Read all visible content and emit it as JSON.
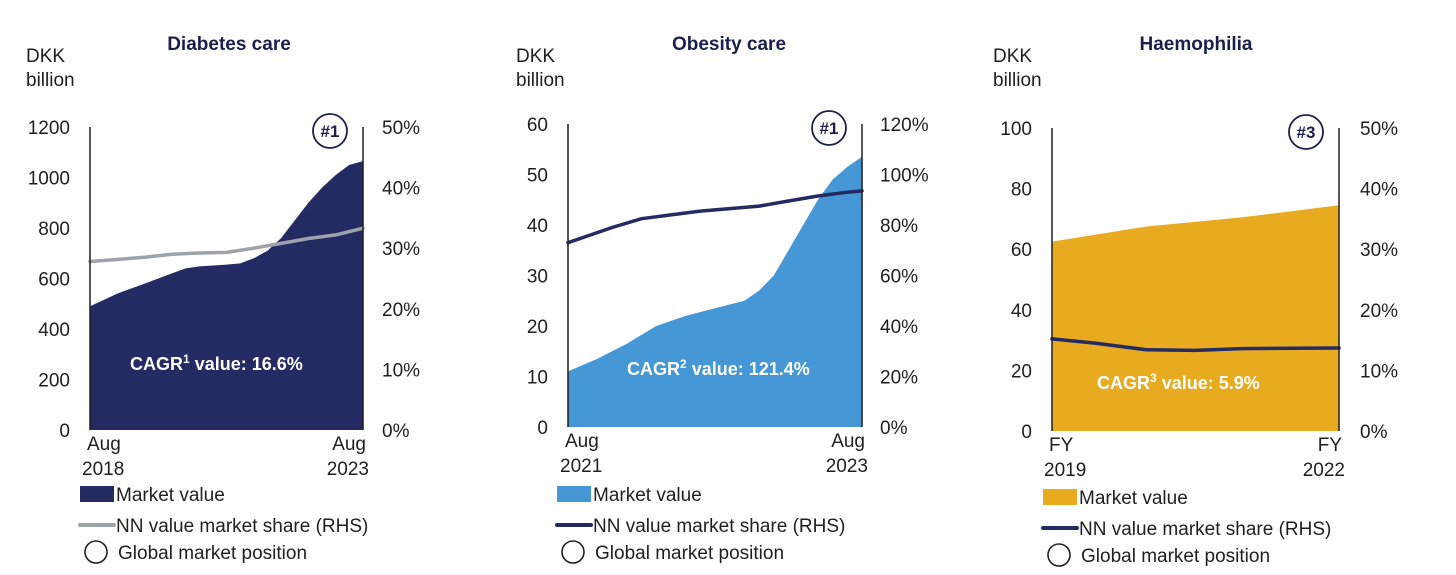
{
  "colors": {
    "navy": "#242a62",
    "light_blue": "#4597d5",
    "gold": "#e8ab20",
    "grey": "#9ea3ab",
    "text": "#1f1f1f"
  },
  "chart_data": [
    {
      "type": "area",
      "title": "Diabetes care",
      "ylabel": [
        "DKK",
        "billion"
      ],
      "ylim": [
        0,
        1200
      ],
      "yticks": [
        "0",
        "200",
        "400",
        "600",
        "800",
        "1000",
        "1200"
      ],
      "y2lim": [
        0,
        50
      ],
      "y2ticks": [
        "0%",
        "10%",
        "20%",
        "30%",
        "40%",
        "50%"
      ],
      "xticks": [
        [
          "Aug",
          "2018"
        ],
        [
          "Aug",
          "2023"
        ]
      ],
      "badge": "#1",
      "cagr": {
        "base": "CAGR",
        "sup": "1",
        "rest": " value: 16.6%"
      },
      "market_color": "navy",
      "share_color": "grey",
      "legend": [
        "Market value",
        "NN value market share (RHS)",
        "Global market position"
      ],
      "market_value": [
        [
          0,
          490
        ],
        [
          0.03,
          505
        ],
        [
          0.1,
          540
        ],
        [
          0.2,
          580
        ],
        [
          0.3,
          620
        ],
        [
          0.35,
          640
        ],
        [
          0.4,
          648
        ],
        [
          0.5,
          655
        ],
        [
          0.55,
          660
        ],
        [
          0.6,
          680
        ],
        [
          0.65,
          710
        ],
        [
          0.7,
          760
        ],
        [
          0.75,
          830
        ],
        [
          0.8,
          900
        ],
        [
          0.85,
          960
        ],
        [
          0.9,
          1010
        ],
        [
          0.95,
          1050
        ],
        [
          1,
          1065
        ]
      ],
      "nn_share": [
        [
          0,
          27.8
        ],
        [
          0.2,
          28.5
        ],
        [
          0.3,
          29.0
        ],
        [
          0.4,
          29.2
        ],
        [
          0.5,
          29.3
        ],
        [
          0.6,
          30.0
        ],
        [
          0.7,
          30.8
        ],
        [
          0.8,
          31.6
        ],
        [
          0.9,
          32.2
        ],
        [
          1,
          33.3
        ]
      ]
    },
    {
      "type": "area",
      "title": "Obesity care",
      "ylabel": [
        "DKK",
        "billion"
      ],
      "ylim": [
        0,
        60
      ],
      "yticks": [
        "0",
        "10",
        "20",
        "30",
        "40",
        "50",
        "60"
      ],
      "y2lim": [
        0,
        120
      ],
      "y2ticks": [
        "0%",
        "20%",
        "40%",
        "60%",
        "80%",
        "100%",
        "120%"
      ],
      "xticks": [
        [
          "Aug",
          "2021"
        ],
        [
          "Aug",
          "2023"
        ]
      ],
      "badge": "#1",
      "cagr": {
        "base": "CAGR",
        "sup": "2",
        "rest": " value: 121.4%"
      },
      "market_color": "light_blue",
      "share_color": "navy",
      "legend": [
        "Market value",
        "NN value market share (RHS)",
        "Global market position"
      ],
      "market_value": [
        [
          0,
          11
        ],
        [
          0.1,
          13.5
        ],
        [
          0.2,
          16.5
        ],
        [
          0.3,
          20
        ],
        [
          0.4,
          22
        ],
        [
          0.5,
          23.5
        ],
        [
          0.6,
          25
        ],
        [
          0.65,
          27
        ],
        [
          0.7,
          30
        ],
        [
          0.75,
          35
        ],
        [
          0.8,
          40
        ],
        [
          0.85,
          45
        ],
        [
          0.9,
          49
        ],
        [
          0.95,
          51.5
        ],
        [
          1,
          53.5
        ]
      ],
      "nn_share": [
        [
          0,
          73
        ],
        [
          0.05,
          75
        ],
        [
          0.15,
          79
        ],
        [
          0.25,
          82.5
        ],
        [
          0.35,
          84
        ],
        [
          0.45,
          85.5
        ],
        [
          0.55,
          86.5
        ],
        [
          0.65,
          87.5
        ],
        [
          0.75,
          89.5
        ],
        [
          0.85,
          91.5
        ],
        [
          0.95,
          93
        ],
        [
          1,
          93.5
        ]
      ]
    },
    {
      "type": "area",
      "title": "Haemophilia",
      "ylabel": [
        "DKK",
        "billion"
      ],
      "ylim": [
        0,
        100
      ],
      "yticks": [
        "0",
        "20",
        "40",
        "60",
        "80",
        "100"
      ],
      "y2lim": [
        0,
        50
      ],
      "y2ticks": [
        "0%",
        "10%",
        "20%",
        "30%",
        "40%",
        "50%"
      ],
      "xticks": [
        [
          "FY",
          "2019"
        ],
        [
          "FY",
          "2022"
        ]
      ],
      "badge": "#3",
      "cagr": {
        "base": "CAGR",
        "sup": "3",
        "rest": " value: 5.9%"
      },
      "market_color": "gold",
      "share_color": "navy",
      "legend": [
        "Market value",
        "NN value market share (RHS)",
        "Global market position"
      ],
      "market_value": [
        [
          0,
          62.5
        ],
        [
          0.33,
          67.5
        ],
        [
          0.66,
          70.5
        ],
        [
          1,
          74.5
        ]
      ],
      "nn_share": [
        [
          0,
          15.2
        ],
        [
          0.15,
          14.5
        ],
        [
          0.33,
          13.4
        ],
        [
          0.5,
          13.3
        ],
        [
          0.66,
          13.6
        ],
        [
          1,
          13.7
        ]
      ]
    }
  ]
}
